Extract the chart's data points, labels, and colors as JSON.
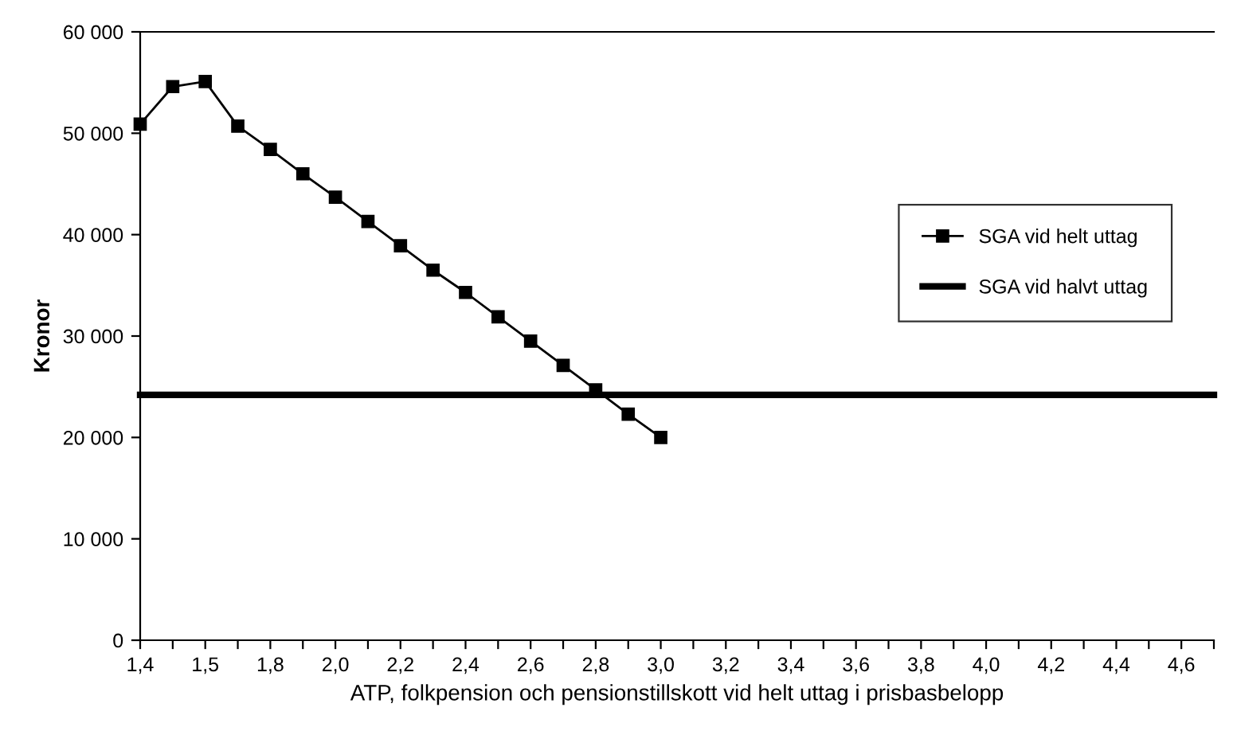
{
  "chart_data": {
    "type": "line",
    "xlabel": "ATP, folkpension och pensionstillskott vid helt uttag i prisbasbelopp",
    "ylabel": "Kronor",
    "categories": [
      "1,4",
      null,
      "1,5",
      null,
      "1,8",
      null,
      "2,0",
      null,
      "2,2",
      null,
      "2,4",
      null,
      "2,6",
      null,
      "2,8",
      null,
      "3,0",
      null,
      "3,2",
      null,
      "3,4",
      null,
      "3,6",
      null,
      "3,8",
      null,
      "4,0",
      null,
      "4,2",
      null,
      "4,4",
      null,
      "4,6",
      null
    ],
    "series": [
      {
        "name": "SGA vid helt uttag",
        "color": "#000000",
        "marker": "square",
        "values": [
          50900,
          54600,
          55100,
          50700,
          48400,
          46000,
          43700,
          41300,
          38900,
          36500,
          34300,
          31900,
          29500,
          27100,
          24700,
          22300,
          20000,
          null,
          null,
          null,
          null,
          null,
          null,
          null,
          null,
          null,
          null,
          null,
          null,
          null,
          null,
          null,
          null,
          null
        ]
      },
      {
        "name": "SGA vid halvt uttag",
        "color": "#000000",
        "marker": "none",
        "values": [
          24200,
          24200,
          24200,
          24200,
          24200,
          24200,
          24200,
          24200,
          24200,
          24200,
          24200,
          24200,
          24200,
          24200,
          24200,
          24200,
          24200,
          24200,
          24200,
          24200,
          24200,
          24200,
          24200,
          24200,
          24200,
          24200,
          24200,
          24200,
          24200,
          24200,
          24200,
          24200,
          24200,
          24200
        ]
      }
    ],
    "ylim": [
      0,
      60000
    ],
    "yticks": [
      {
        "value": 0,
        "label": "0"
      },
      {
        "value": 10000,
        "label": "10 000"
      },
      {
        "value": 20000,
        "label": "20 000"
      },
      {
        "value": 30000,
        "label": "30 000"
      },
      {
        "value": 40000,
        "label": "40 000"
      },
      {
        "value": 50000,
        "label": "50 000"
      },
      {
        "value": 60000,
        "label": "60 000"
      }
    ],
    "grid": false,
    "legend": "right",
    "line_style": "solid"
  }
}
